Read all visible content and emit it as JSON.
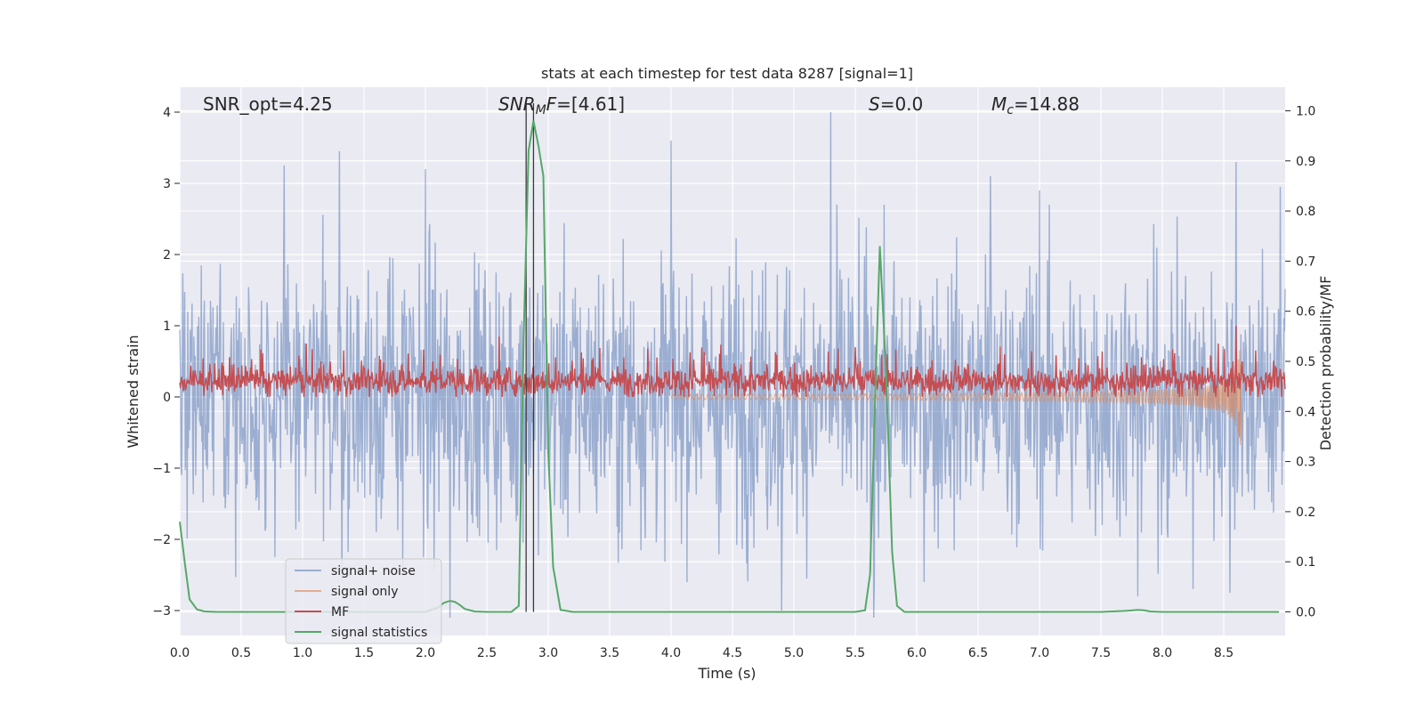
{
  "chart_data": {
    "type": "line",
    "title": "stats at each timestep for test data 8287 [signal=1]",
    "xlabel": "Time (s)",
    "ylabel_left": "Whitened strain",
    "ylabel_right": "Detection probability/MF",
    "xlim": [
      0.0,
      9.0
    ],
    "ylim_left": [
      -3.35,
      4.35
    ],
    "ylim_right": [
      -0.047,
      1.047
    ],
    "x_ticks": [
      "0.0",
      "0.5",
      "1.0",
      "1.5",
      "2.0",
      "2.5",
      "3.0",
      "3.5",
      "4.0",
      "4.5",
      "5.0",
      "5.5",
      "6.0",
      "6.5",
      "7.0",
      "7.5",
      "8.0",
      "8.5"
    ],
    "y_ticks_left": [
      "−3",
      "−2",
      "−1",
      "0",
      "1",
      "2",
      "3",
      "4"
    ],
    "y_ticks_right": [
      "0.0",
      "0.1",
      "0.2",
      "0.3",
      "0.4",
      "0.5",
      "0.6",
      "0.7",
      "0.8",
      "0.9",
      "1.0"
    ],
    "grid": true,
    "legend_placement": "lower-left",
    "annotations": {
      "snr_opt": "SNR_opt=4.25",
      "snr_mf": "=[4.61]",
      "snr_mf_sym": "SNR",
      "snr_mf_sub": "M",
      "snr_mf_f": "F",
      "s": "=0.0",
      "s_sym": "S",
      "mc": "=14.88",
      "mc_sym": "M",
      "mc_sub": "c"
    },
    "vlines_x": [
      2.82,
      2.88
    ],
    "series": [
      {
        "name": "signal+ noise",
        "color": "#4c72b0",
        "alpha": 0.5,
        "axis": "left",
        "style": "noise",
        "peaks": [
          [
            0.85,
            3.25
          ],
          [
            1.3,
            3.45
          ],
          [
            2.0,
            3.2
          ],
          [
            4.0,
            3.6
          ],
          [
            5.3,
            4.0
          ],
          [
            6.6,
            3.1
          ],
          [
            7.0,
            2.9
          ],
          [
            8.6,
            3.3
          ],
          [
            8.96,
            2.95
          ]
        ],
        "troughs": [
          [
            2.2,
            -3.1
          ],
          [
            4.9,
            -3.0
          ],
          [
            5.65,
            -3.1
          ],
          [
            7.8,
            -2.8
          ],
          [
            8.25,
            -2.7
          ],
          [
            8.55,
            -2.75
          ]
        ]
      },
      {
        "name": "signal only",
        "color": "#dd8452",
        "alpha": 0.6,
        "axis": "left",
        "style": "chirp",
        "chirp_end": 8.65
      },
      {
        "name": "MF",
        "color": "#c44e52",
        "axis": "left",
        "style": "mf",
        "band": [
          0.0,
          0.45
        ],
        "peaks": [
          [
            8.6,
            1.0
          ],
          [
            2.6,
            0.85
          ],
          [
            5.5,
            0.7
          ]
        ]
      },
      {
        "name": "signal statistics",
        "color": "#55a868",
        "axis": "right",
        "x": [
          0.0,
          0.04,
          0.08,
          0.14,
          0.2,
          0.3,
          0.4,
          0.6,
          0.8,
          1.0,
          1.2,
          1.4,
          1.6,
          1.8,
          2.0,
          2.1,
          2.15,
          2.2,
          2.24,
          2.28,
          2.32,
          2.4,
          2.5,
          2.6,
          2.7,
          2.76,
          2.8,
          2.84,
          2.88,
          2.92,
          2.96,
          3.0,
          3.04,
          3.1,
          3.2,
          3.5,
          4.0,
          4.5,
          5.0,
          5.5,
          5.58,
          5.62,
          5.67,
          5.7,
          5.75,
          5.8,
          5.84,
          5.9,
          6.0,
          6.5,
          7.0,
          7.5,
          7.7,
          7.8,
          7.85,
          7.9,
          8.0,
          8.5,
          8.95
        ],
        "y": [
          0.18,
          0.1,
          0.025,
          0.005,
          0.001,
          0.0,
          0.0,
          0.0,
          0.0,
          0.0,
          0.0,
          0.0,
          0.0,
          0.0,
          0.0,
          0.008,
          0.018,
          0.022,
          0.02,
          0.014,
          0.006,
          0.001,
          0.0,
          0.0,
          0.0,
          0.012,
          0.55,
          0.92,
          0.98,
          0.93,
          0.87,
          0.32,
          0.09,
          0.004,
          0.0,
          0.0,
          0.0,
          0.0,
          0.0,
          0.0,
          0.003,
          0.075,
          0.5,
          0.73,
          0.48,
          0.12,
          0.012,
          0.0,
          0.0,
          0.0,
          0.0,
          0.0,
          0.002,
          0.004,
          0.003,
          0.001,
          0.0,
          0.0,
          0.0
        ]
      }
    ]
  }
}
